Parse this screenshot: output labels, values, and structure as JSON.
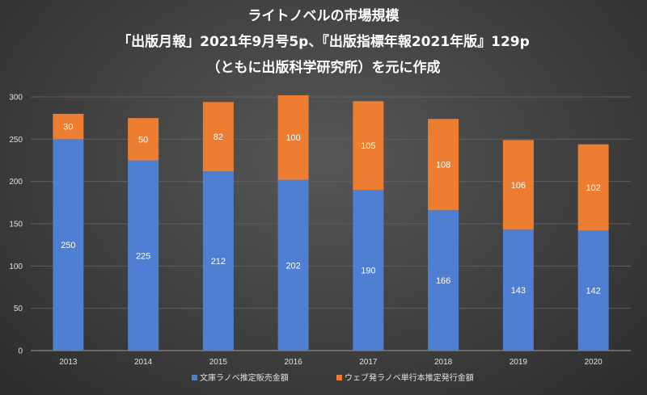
{
  "chart_data": {
    "type": "bar",
    "stacked": true,
    "title": [
      "ライトノベルの市場規模",
      "「出版月報」2021年9月号5p、『出版指標年報2021年版』129p",
      "（ともに出版科学研究所）を元に作成"
    ],
    "categories": [
      "2013",
      "2014",
      "2015",
      "2016",
      "2017",
      "2018",
      "2019",
      "2020"
    ],
    "series": [
      {
        "name": "文庫ラノベ推定販売金額",
        "values": [
          250,
          225,
          212,
          202,
          190,
          166,
          143,
          142
        ],
        "color": "#4f7fd3"
      },
      {
        "name": "ウェブ発ラノベ単行本推定発行金額",
        "values": [
          30,
          50,
          82,
          100,
          105,
          108,
          106,
          102
        ],
        "color": "#ed7d31"
      }
    ],
    "ylim": [
      0,
      300
    ],
    "yticks": [
      "0",
      "50",
      "100",
      "150",
      "200",
      "250",
      "300"
    ],
    "grid": true,
    "legend": "bottom"
  }
}
